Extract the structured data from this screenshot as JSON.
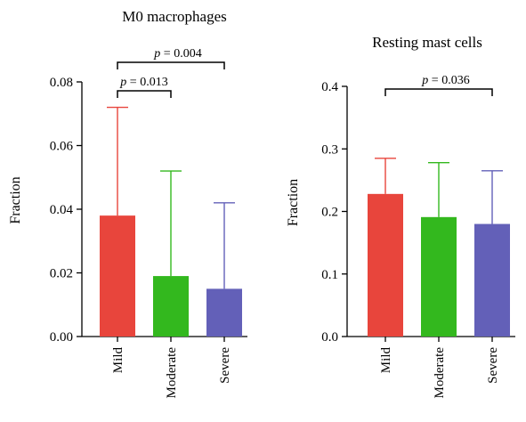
{
  "chart_data": [
    {
      "type": "bar",
      "title": "M0 macrophages",
      "ylabel": "Fraction",
      "xlabel": "",
      "categories": [
        "Mild",
        "Moderate",
        "Severe"
      ],
      "values": [
        0.038,
        0.019,
        0.015
      ],
      "error_upper": [
        0.072,
        0.052,
        0.042
      ],
      "colors": [
        "#e8453c",
        "#33b81e",
        "#6360b8"
      ],
      "ylim": [
        0,
        0.08
      ],
      "yticks": [
        "0.00",
        "0.02",
        "0.04",
        "0.06",
        "0.08"
      ],
      "grid": false,
      "comparisons": [
        {
          "from": 0,
          "to": 1,
          "p_prefix": "p",
          "p_value": " = 0.013"
        },
        {
          "from": 0,
          "to": 2,
          "p_prefix": "p",
          "p_value": " = 0.004"
        }
      ]
    },
    {
      "type": "bar",
      "title": "Resting mast cells",
      "ylabel": "Fraction",
      "xlabel": "",
      "categories": [
        "Mild",
        "Moderate",
        "Severe"
      ],
      "values": [
        0.228,
        0.191,
        0.18
      ],
      "error_upper": [
        0.285,
        0.278,
        0.265
      ],
      "colors": [
        "#e8453c",
        "#33b81e",
        "#6360b8"
      ],
      "ylim": [
        0,
        0.4
      ],
      "yticks": [
        "0.0",
        "0.1",
        "0.2",
        "0.3",
        "0.4"
      ],
      "grid": false,
      "comparisons": [
        {
          "from": 0,
          "to": 2,
          "p_prefix": "p",
          "p_value": " = 0.036"
        }
      ]
    }
  ]
}
